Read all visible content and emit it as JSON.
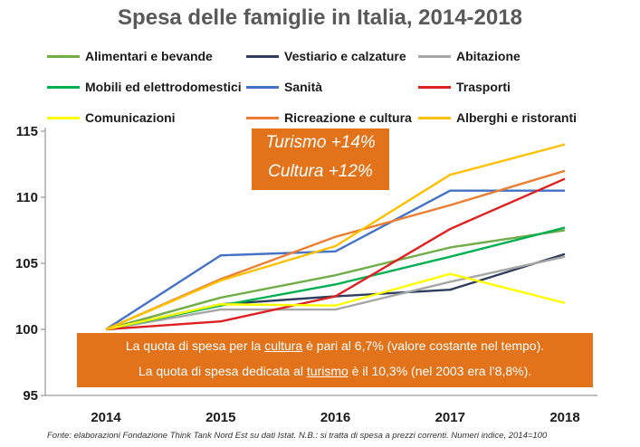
{
  "title": "Spesa delle famiglie in Italia, 2014-2018",
  "callout_top": [
    "Turismo +14%",
    "Cultura +12%"
  ],
  "callout_bottom": {
    "line1": {
      "pre": "La quota di spesa per la ",
      "link": "cultura",
      "post": " è pari al 6,7% (valore costante nel tempo)."
    },
    "line2": {
      "pre": "La quota di spesa dedicata al ",
      "link": "turismo",
      "post": " è il 10,3% (nel 2003 era l’8,8%)."
    }
  },
  "footnote": "Fonte: elaborazioni Fondazione  Think Tank Nord  Est su dati Istat. N.B.: si tratta di spesa a prezzi correnti. Numeri  indice, 2014=100",
  "chart_data": {
    "type": "line",
    "x": [
      "2014",
      "2015",
      "2016",
      "2017",
      "2018"
    ],
    "ylim": [
      95,
      115
    ],
    "yticks": [
      95,
      100,
      105,
      110,
      115
    ],
    "grid": false,
    "legend_position": "top",
    "series": [
      {
        "name": "Alimentari e bevande",
        "color": "#70ad47",
        "values": [
          100,
          102.4,
          104.1,
          106.2,
          107.5
        ]
      },
      {
        "name": "Vestiario e calzature",
        "color": "#2f3e5c",
        "values": [
          100,
          101.9,
          102.5,
          103.0,
          105.7
        ]
      },
      {
        "name": "Abitazione",
        "color": "#a6a6a6",
        "values": [
          100,
          101.5,
          101.5,
          103.6,
          105.5
        ]
      },
      {
        "name": "Mobili ed elettrodomestici",
        "color": "#00b050",
        "values": [
          100,
          101.8,
          103.4,
          105.5,
          107.7
        ]
      },
      {
        "name": "Sanità",
        "color": "#4472c4",
        "values": [
          100,
          105.6,
          105.9,
          110.5,
          110.5
        ]
      },
      {
        "name": "Trasporti",
        "color": "#e02020",
        "values": [
          100,
          100.6,
          102.5,
          107.6,
          111.4
        ]
      },
      {
        "name": "Comunicazioni",
        "color": "#ffff00",
        "values": [
          100,
          101.9,
          101.8,
          104.2,
          102.0
        ]
      },
      {
        "name": "Ricreazione e cultura",
        "color": "#ed7d31",
        "values": [
          100,
          103.8,
          107.0,
          109.4,
          112.0
        ]
      },
      {
        "name": "Alberghi e ristoranti",
        "color": "#ffc000",
        "values": [
          100,
          103.7,
          106.3,
          111.7,
          114.0
        ]
      }
    ]
  }
}
